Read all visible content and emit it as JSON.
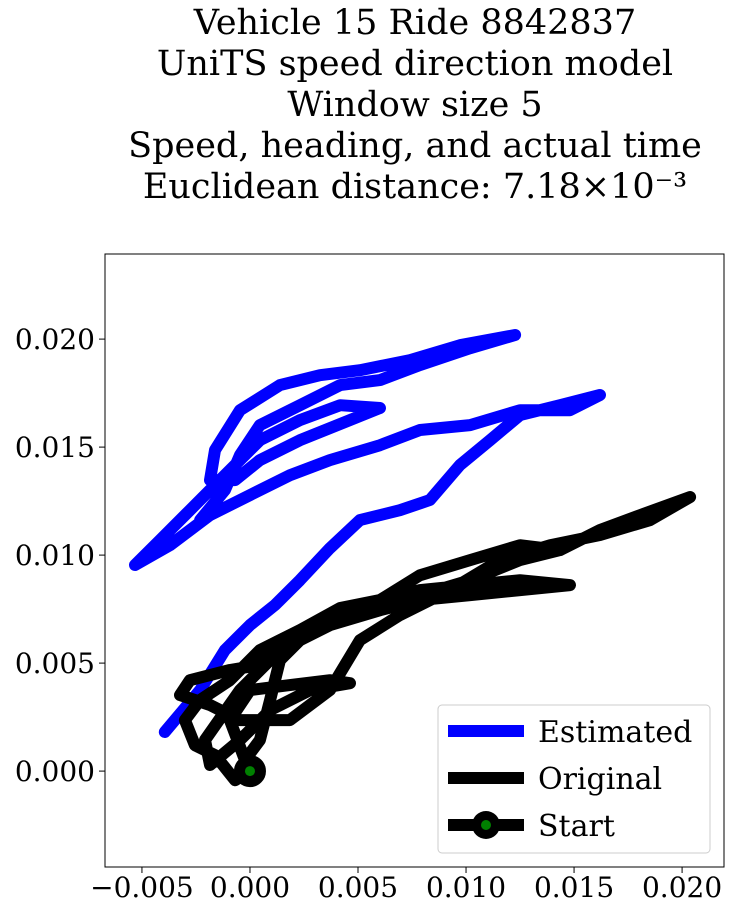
{
  "chart_data": {
    "type": "line",
    "title": [
      "Vehicle 15 Ride 8842837",
      "UniTS speed direction model",
      "Window size 5",
      "Speed, heading, and actual time",
      "Euclidean distance: 7.18×10⁻³"
    ],
    "xlim": [
      -0.00671,
      0.02194
    ],
    "ylim": [
      -0.00444,
      0.02394
    ],
    "xticks": [
      {
        "value": -0.005,
        "label": "−0.005"
      },
      {
        "value": 0,
        "label": "0.000"
      },
      {
        "value": 0.005,
        "label": "0.005"
      },
      {
        "value": 0.01,
        "label": "0.010"
      },
      {
        "value": 0.015,
        "label": "0.015"
      },
      {
        "value": 0.02,
        "label": "0.020"
      }
    ],
    "yticks": [
      {
        "value": 0,
        "label": "0.000"
      },
      {
        "value": 0.005,
        "label": "0.005"
      },
      {
        "value": 0.01,
        "label": "0.010"
      },
      {
        "value": 0.015,
        "label": "0.015"
      },
      {
        "value": 0.02,
        "label": "0.020"
      }
    ],
    "grid": false,
    "legend": "lower right",
    "series": [
      {
        "name": "Estimated",
        "color": "#0000ff",
        "x": [
          -0.00394,
          -0.00231,
          -0.00116,
          0,
          0.00116,
          0.00231,
          0.0037,
          0.00509,
          0.00694,
          0.00833,
          0.00972,
          0.01111,
          0.0125,
          0.01435,
          0.0162,
          0.01481,
          0.0125,
          0.01019,
          0.00787,
          0.00602,
          0.0037,
          0.00185,
          0,
          -0.00185,
          -0.0037,
          -0.00532,
          -0.00417,
          -0.00278,
          -0.00139,
          0.00046,
          0.00231,
          0.00417,
          0.00602,
          0.00463,
          0.00231,
          0.00046,
          -0.00069,
          -0.00185,
          -0.00162,
          -0.00046,
          0.00139,
          0.00324,
          0.00509,
          0.00741,
          0.00972,
          0.01227,
          0.01019,
          0.00787,
          0.00602,
          0.00417,
          0.00231,
          0.00046,
          -0.00046,
          -0.00116,
          -0.00231
        ],
        "values": [
          0.00181,
          0.00375,
          0.0056,
          0.00676,
          0.00769,
          0.00884,
          0.01032,
          0.01162,
          0.01208,
          0.01255,
          0.01417,
          0.01532,
          0.01648,
          0.01694,
          0.01741,
          0.01671,
          0.01671,
          0.01602,
          0.01579,
          0.01509,
          0.0144,
          0.0137,
          0.01278,
          0.01185,
          0.01046,
          0.00954,
          0.01069,
          0.01208,
          0.01347,
          0.01532,
          0.01625,
          0.01694,
          0.01681,
          0.01625,
          0.01532,
          0.0144,
          0.01347,
          0.01347,
          0.01486,
          0.01671,
          0.01787,
          0.01833,
          0.01856,
          0.01903,
          0.01972,
          0.02019,
          0.01958,
          0.0188,
          0.0181,
          0.01787,
          0.01694,
          0.01602,
          0.01463,
          0.01301,
          0.01162
        ]
      },
      {
        "name": "Original",
        "color": "#000000",
        "x": [
          0,
          -0.00069,
          -0.00162,
          -0.00255,
          -0.00301,
          -0.00231,
          -0.00093,
          0.00046,
          0.00231,
          0.00417,
          0.00602,
          0.00787,
          0.01019,
          0.0125,
          0.01481,
          0.0125,
          0.01019,
          0.00787,
          0.00602,
          0.00417,
          0.00231,
          0.00139,
          0.00093,
          0.00046,
          -0.00023,
          -0.00093,
          0,
          0.00185,
          0.0037,
          0.00463,
          0.00278,
          0.00093,
          -0.00046,
          -0.00185,
          -0.00208,
          -0.00046,
          0.00093,
          0.00231,
          0.00417,
          0.00602,
          0.00787,
          0.01019,
          0.0125,
          0.01435,
          0.0125,
          0.01019,
          0.00787,
          0.00602,
          0.0037,
          0.00185,
          0.00046,
          -0.00093,
          -0.00278,
          -0.00324,
          -0.00185,
          -0.00046,
          0.00185,
          0.0037,
          0.00509,
          0.00694,
          0.00926,
          0.01157,
          0.01389,
          0.0162,
          0.01852,
          0.02037,
          0.01806,
          0.0162,
          0.01435
        ],
        "values": [
          0,
          -0.00042,
          0.00074,
          0.0012,
          0.00236,
          0.00329,
          0.00421,
          0.0056,
          0.00653,
          0.00722,
          0.00792,
          0.00838,
          0.00861,
          0.00884,
          0.00861,
          0.00838,
          0.00815,
          0.00792,
          0.00745,
          0.00699,
          0.00606,
          0.00514,
          0.00329,
          0.00144,
          0.00051,
          0.00236,
          0.00375,
          0.00398,
          0.00421,
          0.00407,
          0.00375,
          0.00282,
          0.00144,
          0.00028,
          0.00144,
          0.00375,
          0.00514,
          0.00653,
          0.00755,
          0.00792,
          0.00907,
          0.00977,
          0.01046,
          0.01023,
          0.00977,
          0.00884,
          0.00815,
          0.00745,
          0.00676,
          0.00606,
          0.00491,
          0.00468,
          0.00421,
          0.00352,
          0.00306,
          0.00236,
          0.00236,
          0.00375,
          0.00606,
          0.00722,
          0.00838,
          0.00977,
          0.01046,
          0.01093,
          0.01162,
          0.01269,
          0.01185,
          0.01116,
          0.01023
        ]
      },
      {
        "name": "Start",
        "color": "#000000",
        "marker_color": "#008000",
        "x": [
          0
        ],
        "values": [
          0
        ]
      }
    ]
  }
}
